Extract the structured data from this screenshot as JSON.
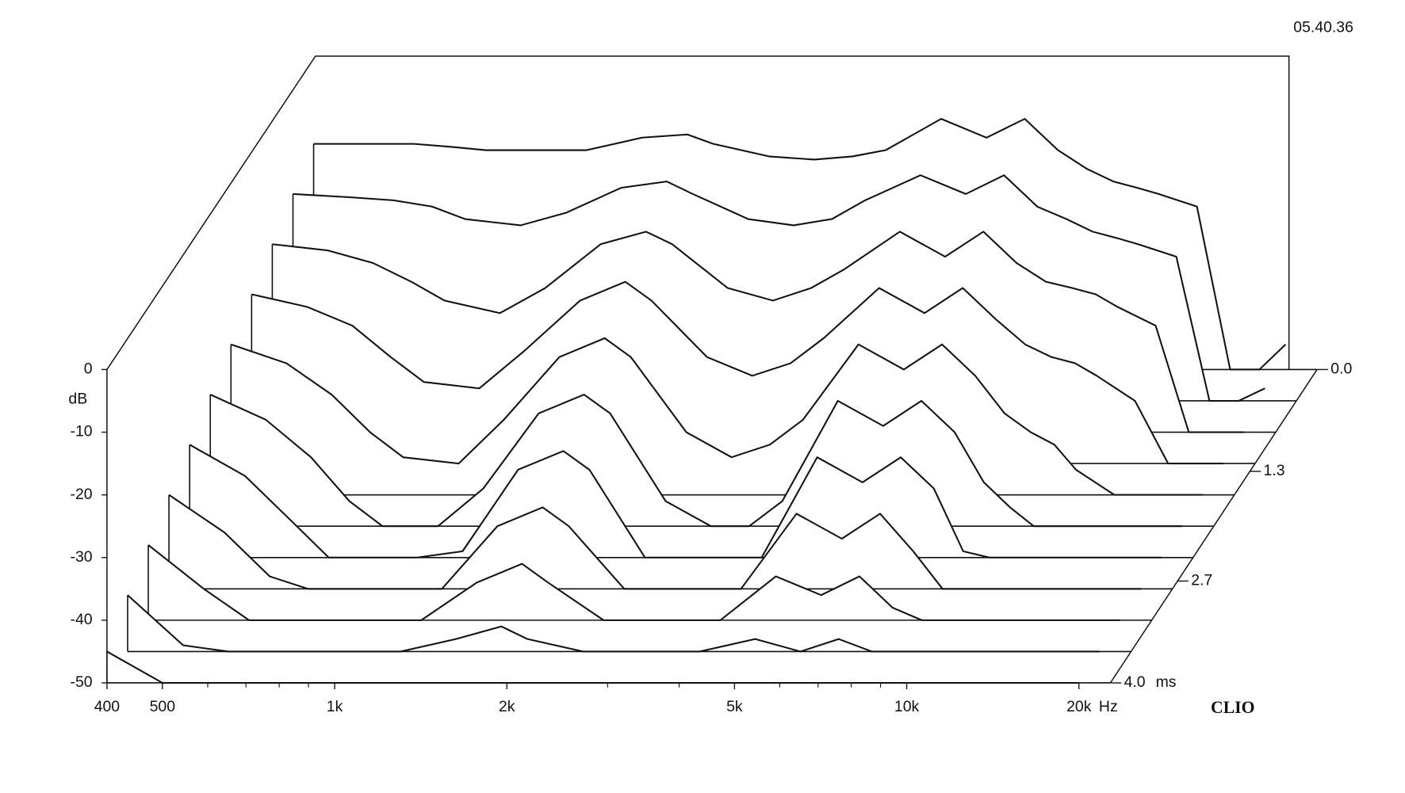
{
  "chart_data": {
    "type": "waterfall",
    "timestamp": "05.40.36",
    "brand": "CLIO",
    "y_label": "dB",
    "x_unit": "Hz",
    "z_unit": "ms",
    "log_x": true,
    "xlim": [
      400,
      22700
    ],
    "xticks": [
      {
        "value": 400,
        "label": "400"
      },
      {
        "value": 500,
        "label": "500"
      },
      {
        "value": 1000,
        "label": "1k"
      },
      {
        "value": 2000,
        "label": "2k"
      },
      {
        "value": 5000,
        "label": "5k"
      },
      {
        "value": 10000,
        "label": "10k"
      },
      {
        "value": 20000,
        "label": "20k"
      }
    ],
    "xminorticks": [
      600,
      700,
      800,
      900,
      3000,
      4000,
      6000,
      7000,
      8000,
      9000
    ],
    "ylim": [
      -50,
      0
    ],
    "yticks": [
      0,
      -10,
      -20,
      -30,
      -40,
      -50
    ],
    "zlim": [
      0,
      4.0
    ],
    "zticks": [
      {
        "value": 0,
        "label": "0.0"
      },
      {
        "value": 1.3,
        "label": "1.3"
      },
      {
        "value": 2.7,
        "label": "2.7"
      },
      {
        "value": 4.0,
        "label": "4.0"
      }
    ],
    "color": "#111111",
    "x": [
      400,
      500,
      600,
      700,
      800,
      1000,
      1200,
      1500,
      1800,
      2000,
      2500,
      3000,
      3500,
      4000,
      5000,
      6000,
      7000,
      8000,
      9000,
      10000,
      11000,
      12000,
      14000,
      16000,
      18000,
      20000
    ],
    "slices": [
      {
        "time": 0,
        "values": [
          -14,
          -14,
          -14,
          -14.5,
          -15,
          -15,
          -15,
          -13,
          -12.5,
          -14,
          -16,
          -16.5,
          -16,
          -15,
          -10,
          -13,
          -10,
          -15,
          -18,
          -20,
          -21,
          -22,
          -24,
          -50,
          -50,
          -46
        ]
      },
      {
        "time": 0.4,
        "values": [
          -17,
          -17.5,
          -18,
          -19,
          -21,
          -22,
          -20,
          -16,
          -15,
          -17,
          -21,
          -22,
          -21,
          -18,
          -14,
          -17,
          -14,
          -19,
          -21,
          -23,
          -24,
          -25,
          -27,
          -50,
          -50,
          -48
        ]
      },
      {
        "time": 0.8,
        "values": [
          -20,
          -21,
          -23,
          -26,
          -29,
          -31,
          -27,
          -20,
          -18,
          -20,
          -27,
          -29,
          -27,
          -24,
          -18,
          -22,
          -18,
          -23,
          -26,
          -27,
          -28,
          -30,
          -33,
          -50,
          -50,
          -50
        ]
      },
      {
        "time": 1.2,
        "values": [
          -23,
          -25,
          -28,
          -33,
          -37,
          -38,
          -32,
          -24,
          -21,
          -24,
          -33,
          -36,
          -34,
          -30,
          -22,
          -26,
          -22,
          -27,
          -31,
          -33,
          -34,
          -36,
          -40,
          -50,
          -50,
          -50
        ]
      },
      {
        "time": 1.6,
        "values": [
          -26,
          -29,
          -34,
          -40,
          -44,
          -45,
          -38,
          -28,
          -25,
          -28,
          -40,
          -44,
          -42,
          -38,
          -26,
          -30,
          -26,
          -31,
          -37,
          -40,
          -42,
          -46,
          -50,
          -50,
          -50,
          -50
        ]
      },
      {
        "time": 2.0,
        "values": [
          -29,
          -33,
          -39,
          -46,
          -50,
          -50,
          -44,
          -32,
          -29,
          -32,
          -46,
          -50,
          -50,
          -46,
          -30,
          -34,
          -30,
          -35,
          -43,
          -47,
          -50,
          -50,
          -50,
          -50,
          -50,
          -50
        ]
      },
      {
        "time": 2.4,
        "values": [
          -32,
          -37,
          -44,
          -50,
          -50,
          -50,
          -49,
          -36,
          -33,
          -36,
          -50,
          -50,
          -50,
          -50,
          -34,
          -38,
          -34,
          -39,
          -49,
          -50,
          -50,
          -50,
          -50,
          -50,
          -50,
          -50
        ]
      },
      {
        "time": 2.8,
        "values": [
          -35,
          -41,
          -48,
          -50,
          -50,
          -50,
          -50,
          -40,
          -37,
          -40,
          -50,
          -50,
          -50,
          -50,
          -38,
          -42,
          -38,
          -44,
          -50,
          -50,
          -50,
          -50,
          -50,
          -50,
          -50,
          -50
        ]
      },
      {
        "time": 3.2,
        "values": [
          -38,
          -45,
          -50,
          -50,
          -50,
          -50,
          -50,
          -44,
          -41,
          -44,
          -50,
          -50,
          -50,
          -50,
          -43,
          -46,
          -43,
          -48,
          -50,
          -50,
          -50,
          -50,
          -50,
          -50,
          -50,
          -50
        ]
      },
      {
        "time": 3.6,
        "values": [
          -41,
          -49,
          -50,
          -50,
          -50,
          -50,
          -50,
          -48,
          -46,
          -48,
          -50,
          -50,
          -50,
          -50,
          -48,
          -50,
          -48,
          -50,
          -50,
          -50,
          -50,
          -50,
          -50,
          -50,
          -50,
          -50
        ]
      },
      {
        "time": 4.0,
        "values": [
          -45,
          -50,
          -50,
          -50,
          -50,
          -50,
          -50,
          -50,
          -50,
          -50,
          -50,
          -50,
          -50,
          -50,
          -50,
          -50,
          -50,
          -50,
          -50,
          -50,
          -50,
          -50,
          -50,
          -50,
          -50,
          -50
        ]
      }
    ]
  }
}
